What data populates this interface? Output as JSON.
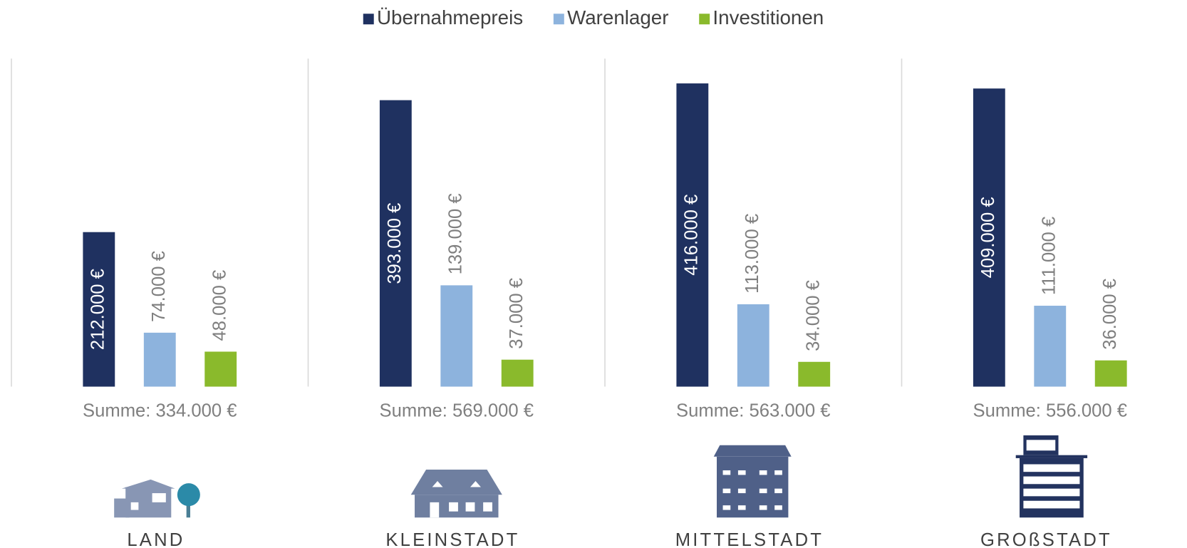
{
  "chart_data": {
    "type": "bar",
    "categories": [
      "LAND",
      "KLEINSTADT",
      "MITTELSTADT",
      "GROßSTADT"
    ],
    "series": [
      {
        "name": "Übernahmepreis",
        "color": "#1f3160",
        "values": [
          212000,
          393000,
          416000,
          409000
        ],
        "value_labels": [
          "212.000 €",
          "393.000 €",
          "416.000 €",
          "409.000 €"
        ]
      },
      {
        "name": "Warenlager",
        "color": "#8db3dd",
        "values": [
          74000,
          139000,
          113000,
          111000
        ],
        "value_labels": [
          "74.000 €",
          "139.000 €",
          "113.000 €",
          "111.000 €"
        ]
      },
      {
        "name": "Investitionen",
        "color": "#8aba2c",
        "values": [
          48000,
          37000,
          34000,
          36000
        ],
        "value_labels": [
          "48.000 €",
          "37.000 €",
          "34.000 €",
          "36.000 €"
        ]
      }
    ],
    "totals": [
      334000,
      569000,
      563000,
      556000
    ],
    "total_labels": [
      "Summe: 334.000 €",
      "Summe: 569.000 €",
      "Summe: 563.000 €",
      "Summe: 556.000 €"
    ],
    "ylim": [
      0,
      450000
    ],
    "legend": "top"
  }
}
